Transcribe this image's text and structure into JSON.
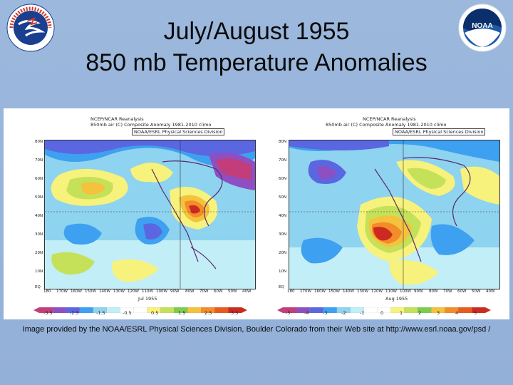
{
  "slide": {
    "title_line1": "July/August 1955",
    "title_line2": "850 mb Temperature Anomalies",
    "credit": "Image provided by the NOAA/ESRL Physical Sciences Division, Boulder Colorado from their Web site at http://www.esrl.noaa.gov/psd /",
    "background_color": "#97b3d9"
  },
  "logos": {
    "left": {
      "icon": "national-weather-service-logo",
      "text": "NATIONAL WEATHER SERVICE"
    },
    "right": {
      "icon": "noaa-logo",
      "text": "NOAA"
    }
  },
  "maps": [
    {
      "header1": "NCEP/NCAR Reanalysis",
      "header2": "850mb air (C) Composite Anomaly 1981-2010 climo",
      "header3": "NOAA/ESRL Physical Sciences Division",
      "month": "Jul 1955",
      "lat_labels": [
        "80N",
        "70N",
        "60N",
        "50N",
        "40N",
        "30N",
        "20N",
        "10N",
        "EQ"
      ],
      "lon_labels": [
        "180",
        "170W",
        "160W",
        "150W",
        "140W",
        "130W",
        "120W",
        "110W",
        "100W",
        "90W",
        "80W",
        "70W",
        "60W",
        "50W",
        "40W"
      ],
      "colorbar_labels": [
        "-3.5",
        "-2.5",
        "-1.5",
        "-0.5",
        "0.5",
        "1.5",
        "2.5",
        "3.5"
      ],
      "colorbar_colors": [
        "#c33d7a",
        "#8d4fc1",
        "#5a67e0",
        "#3ea0f0",
        "#8ed3ef",
        "#c2eef7",
        "#ffffff",
        "#ffffff",
        "#f7f27c",
        "#c5e15a",
        "#7ccd4f",
        "#f5c23e",
        "#f28d2a",
        "#e85a1f",
        "#cc2a20"
      ]
    },
    {
      "header1": "NCEP/NCAR Reanalysis",
      "header2": "850mb air (C) Composite Anomaly 1981-2010 climo",
      "header3": "NOAA/ESRL Physical Sciences Division",
      "month": "Aug 1955",
      "lat_labels": [
        "80N",
        "70N",
        "60N",
        "50N",
        "40N",
        "30N",
        "20N",
        "10N",
        "EQ"
      ],
      "lon_labels": [
        "180",
        "170W",
        "160W",
        "150W",
        "140W",
        "130W",
        "120W",
        "110W",
        "100W",
        "90W",
        "80W",
        "70W",
        "60W",
        "50W",
        "40W"
      ],
      "colorbar_labels": [
        "-5",
        "-4",
        "-3",
        "-2",
        "-1",
        "0",
        "1",
        "2",
        "3",
        "4",
        "5"
      ],
      "colorbar_colors": [
        "#c33d7a",
        "#8d4fc1",
        "#5a67e0",
        "#3ea0f0",
        "#8ed3ef",
        "#c2eef7",
        "#ffffff",
        "#ffffff",
        "#f7f27c",
        "#c5e15a",
        "#7ccd4f",
        "#f5c23e",
        "#f28d2a",
        "#e85a1f",
        "#cc2a20"
      ]
    }
  ]
}
